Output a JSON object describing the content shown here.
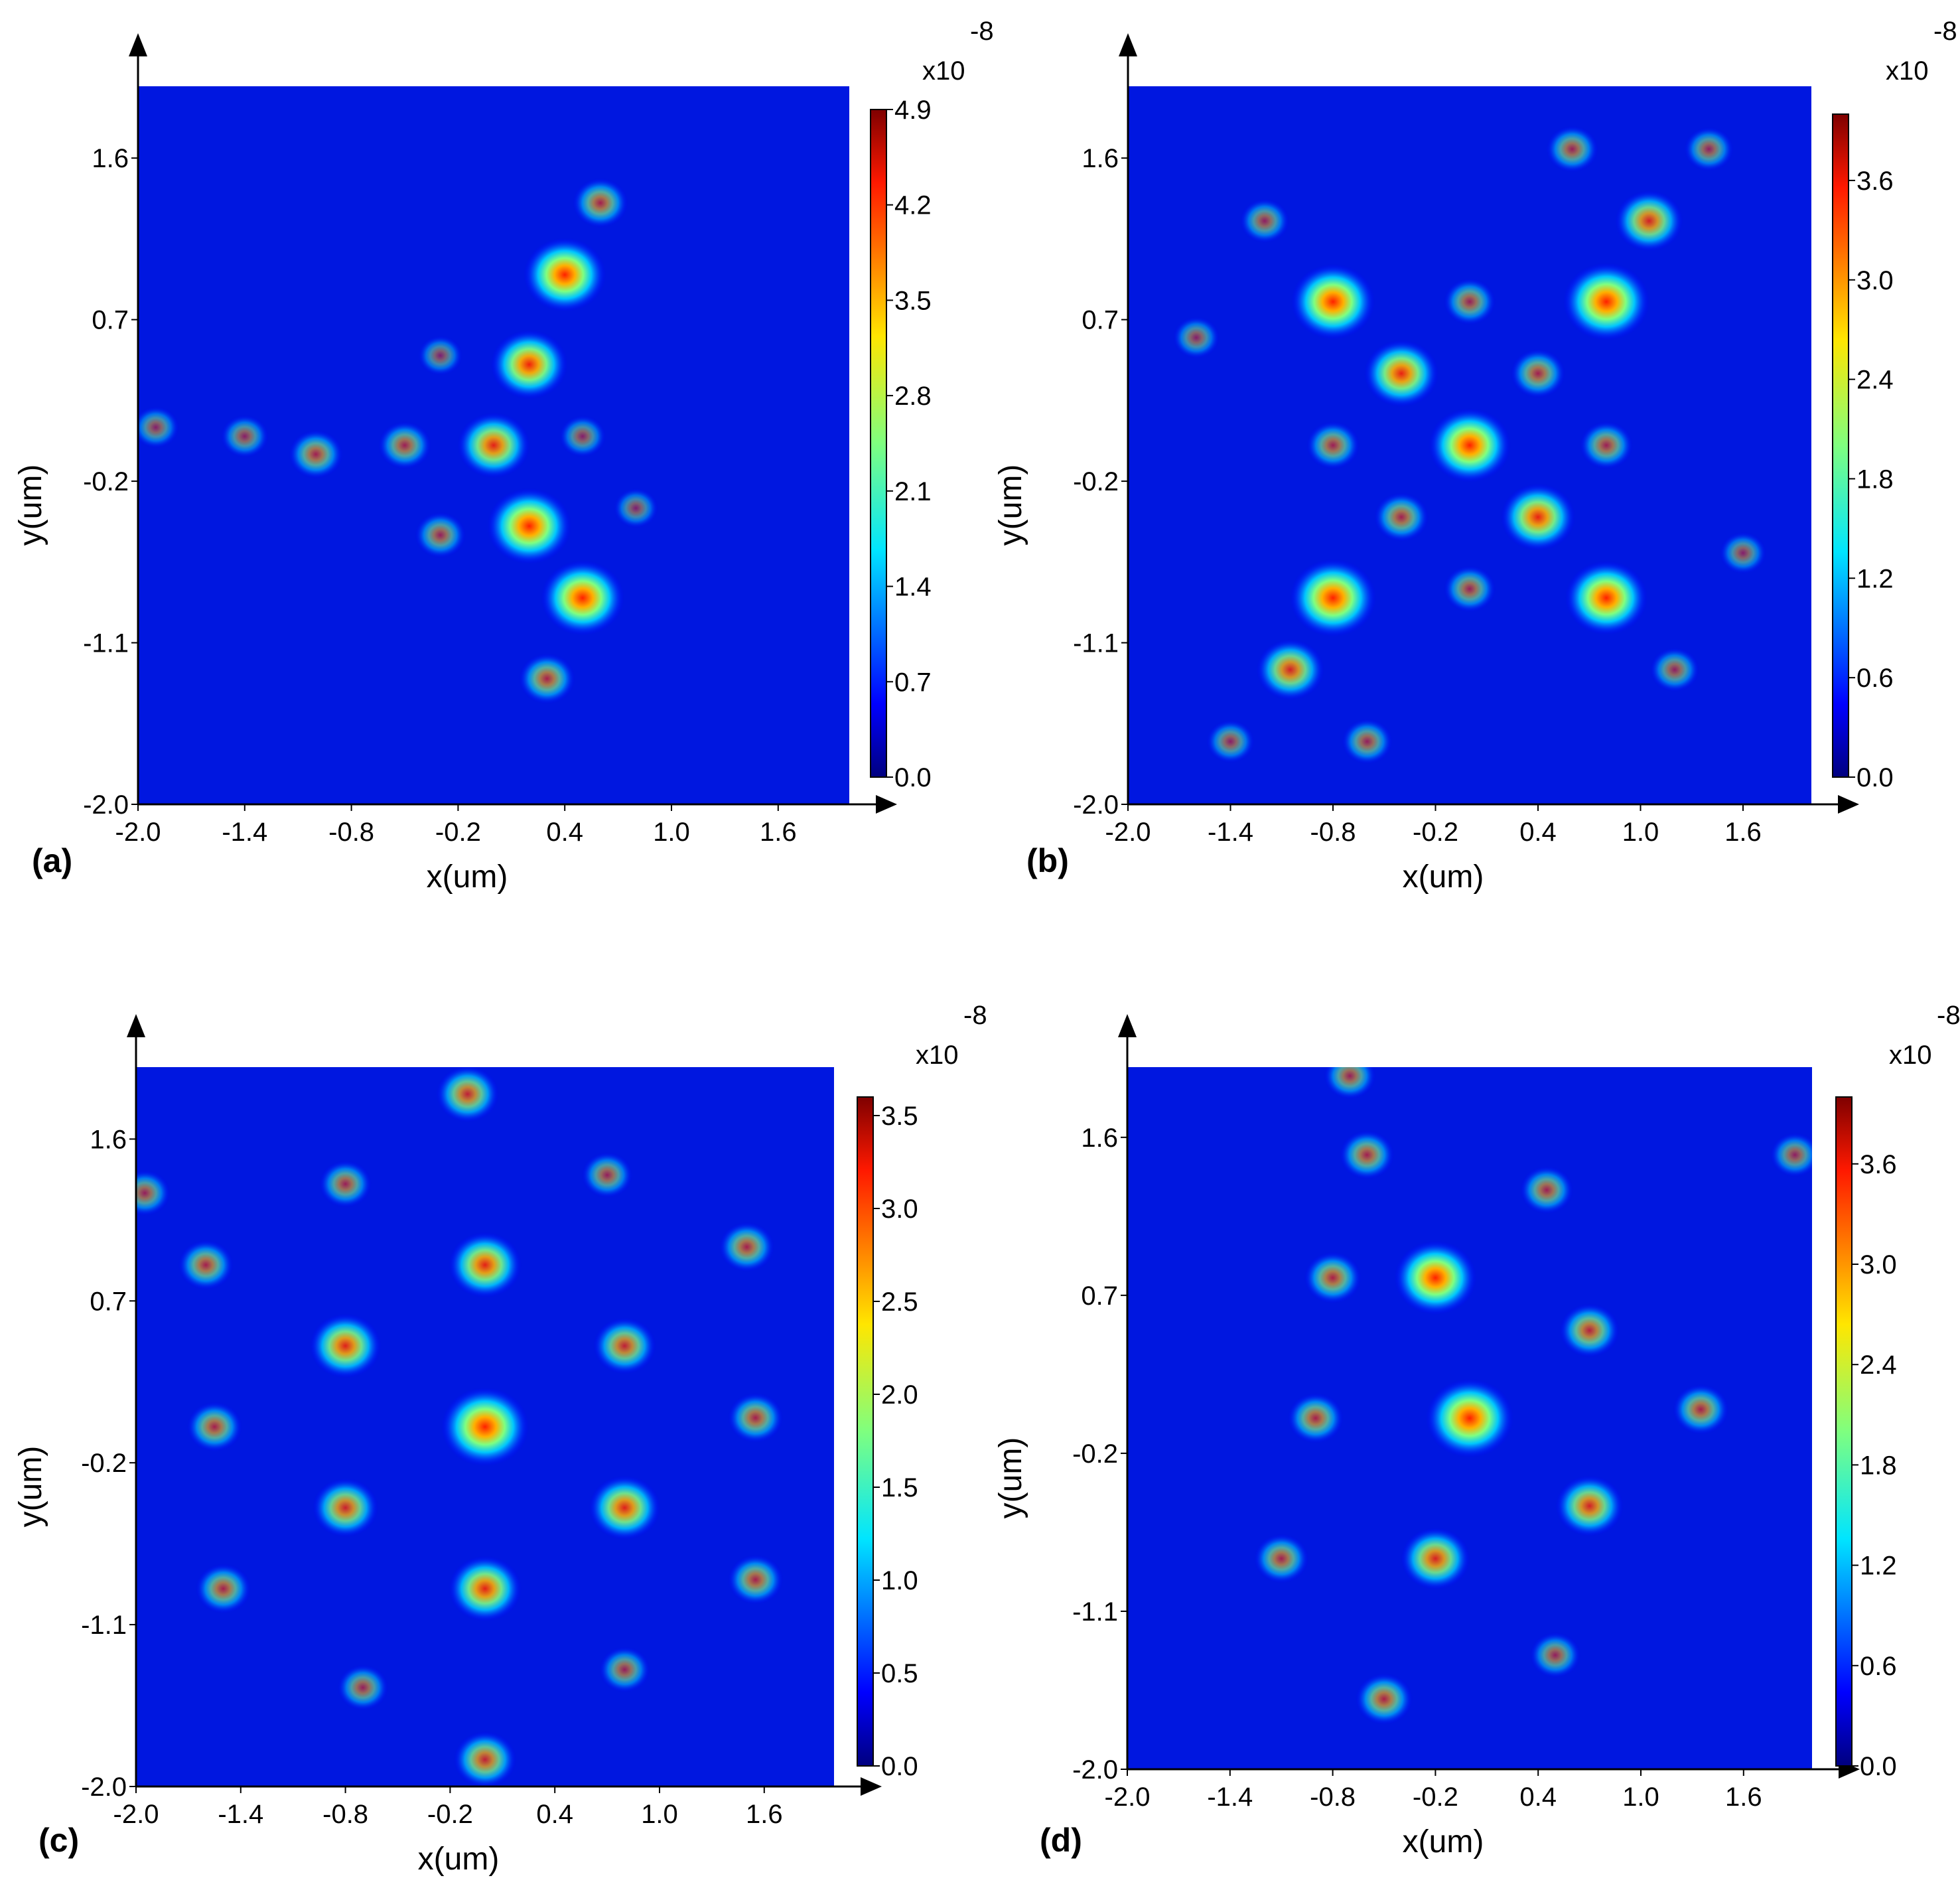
{
  "figure": {
    "panels": [
      {
        "label": "(a)",
        "cbar_max": 4.9,
        "cbar_ticks": [
          "4.9",
          "4.2",
          "3.5",
          "2.8",
          "2.1",
          "1.4",
          "0.7",
          "0.0"
        ],
        "cbar_exponent": "-8",
        "cbar_multiplier": "x10"
      },
      {
        "label": "(b)",
        "cbar_max": 4.0,
        "cbar_ticks": [
          "3.6",
          "3.0",
          "2.4",
          "1.8",
          "1.2",
          "0.6",
          "0.0"
        ],
        "cbar_exponent": "-8",
        "cbar_multiplier": "x10"
      },
      {
        "label": "(c)",
        "cbar_max": 3.6,
        "cbar_ticks": [
          "3.5",
          "3.0",
          "2.5",
          "2.0",
          "1.5",
          "1.0",
          "0.5",
          "0.0"
        ],
        "cbar_exponent": "-8",
        "cbar_multiplier": "x10"
      },
      {
        "label": "(d)",
        "cbar_max": 4.0,
        "cbar_ticks": [
          "3.6",
          "3.0",
          "2.4",
          "1.8",
          "1.2",
          "0.6",
          "0.0"
        ],
        "cbar_exponent": "-8",
        "cbar_multiplier": "x10"
      }
    ]
  },
  "chart_data": [
    {
      "type": "heatmap",
      "panel_label": "(a)",
      "xlabel": "x(um)",
      "ylabel": "y(um)",
      "xlim": [
        -2.0,
        2.0
      ],
      "ylim": [
        -2.0,
        2.0
      ],
      "xticks": [
        "-2.0",
        "-1.4",
        "-0.8",
        "-0.2",
        "0.4",
        "1.0",
        "1.6"
      ],
      "yticks": [
        "1.6",
        "0.7",
        "-0.2",
        "-1.1",
        "-2.0"
      ],
      "colorbar": {
        "min": 0.0,
        "max": 4.9,
        "scale": "x10^-8",
        "colormap": "jet"
      },
      "peaks": [
        {
          "x": 0.4,
          "y": 0.95,
          "value": 4.4
        },
        {
          "x": 0.2,
          "y": 0.45,
          "value": 3.9
        },
        {
          "x": 0.0,
          "y": 0.0,
          "value": 3.5
        },
        {
          "x": 0.2,
          "y": -0.45,
          "value": 4.6
        },
        {
          "x": 0.5,
          "y": -0.85,
          "value": 4.5
        },
        {
          "x": 0.3,
          "y": -1.3,
          "value": 2.0
        },
        {
          "x": 0.6,
          "y": 1.35,
          "value": 1.9
        },
        {
          "x": -0.5,
          "y": 0.0,
          "value": 1.7
        },
        {
          "x": -1.0,
          "y": -0.05,
          "value": 1.8
        },
        {
          "x": -1.4,
          "y": 0.05,
          "value": 1.2
        },
        {
          "x": -1.9,
          "y": 0.1,
          "value": 1.1
        },
        {
          "x": -0.3,
          "y": -0.5,
          "value": 1.5
        },
        {
          "x": 0.5,
          "y": 0.05,
          "value": 1.1
        },
        {
          "x": -0.3,
          "y": 0.5,
          "value": 0.9
        },
        {
          "x": 0.8,
          "y": -0.35,
          "value": 0.9
        }
      ]
    },
    {
      "type": "heatmap",
      "panel_label": "(b)",
      "xlabel": "x(um)",
      "ylabel": "y(um)",
      "xlim": [
        -2.0,
        2.0
      ],
      "ylim": [
        -2.0,
        2.0
      ],
      "xticks": [
        "-2.0",
        "-1.4",
        "-0.8",
        "-0.2",
        "0.4",
        "1.0",
        "1.6"
      ],
      "yticks": [
        "1.6",
        "0.7",
        "-0.2",
        "-1.1",
        "-2.0"
      ],
      "colorbar": {
        "min": 0.0,
        "max": 4.0,
        "scale": "x10^-8",
        "colormap": "jet"
      },
      "peaks": [
        {
          "x": -0.8,
          "y": 0.8,
          "value": 3.7
        },
        {
          "x": 0.8,
          "y": 0.8,
          "value": 3.9
        },
        {
          "x": -0.4,
          "y": 0.4,
          "value": 3.0
        },
        {
          "x": 0.0,
          "y": 0.0,
          "value": 3.6
        },
        {
          "x": 0.4,
          "y": -0.4,
          "value": 3.0
        },
        {
          "x": -0.8,
          "y": -0.85,
          "value": 3.9
        },
        {
          "x": 0.8,
          "y": -0.85,
          "value": 3.6
        },
        {
          "x": 1.05,
          "y": 1.25,
          "value": 2.5
        },
        {
          "x": -1.05,
          "y": -1.25,
          "value": 2.5
        },
        {
          "x": 0.4,
          "y": 0.4,
          "value": 1.5
        },
        {
          "x": -0.4,
          "y": -0.4,
          "value": 1.5
        },
        {
          "x": -0.8,
          "y": 0.0,
          "value": 1.4
        },
        {
          "x": 0.8,
          "y": 0.0,
          "value": 1.4
        },
        {
          "x": 0.0,
          "y": 0.8,
          "value": 1.3
        },
        {
          "x": 0.0,
          "y": -0.8,
          "value": 1.3
        },
        {
          "x": 0.6,
          "y": 1.65,
          "value": 1.3
        },
        {
          "x": 1.4,
          "y": 1.65,
          "value": 1.1
        },
        {
          "x": -1.2,
          "y": 1.25,
          "value": 1.1
        },
        {
          "x": 1.2,
          "y": -1.25,
          "value": 1.1
        },
        {
          "x": -1.6,
          "y": 0.6,
          "value": 0.9
        },
        {
          "x": 1.6,
          "y": -0.6,
          "value": 0.9
        },
        {
          "x": -0.6,
          "y": -1.65,
          "value": 1.2
        },
        {
          "x": -1.4,
          "y": -1.65,
          "value": 1.0
        }
      ]
    },
    {
      "type": "heatmap",
      "panel_label": "(c)",
      "xlabel": "x(um)",
      "ylabel": "y(um)",
      "xlim": [
        -2.0,
        2.0
      ],
      "ylim": [
        -2.0,
        2.0
      ],
      "xticks": [
        "-2.0",
        "-1.4",
        "-0.8",
        "-0.2",
        "0.4",
        "1.0",
        "1.6"
      ],
      "yticks": [
        "1.6",
        "0.7",
        "-0.2",
        "-1.1",
        "-2.0"
      ],
      "colorbar": {
        "min": 0.0,
        "max": 3.6,
        "scale": "x10^-8",
        "colormap": "jet"
      },
      "peaks": [
        {
          "x": 0.0,
          "y": 0.0,
          "value": 3.6
        },
        {
          "x": 0.0,
          "y": 0.9,
          "value": 2.6
        },
        {
          "x": 0.0,
          "y": -0.9,
          "value": 2.6
        },
        {
          "x": -0.8,
          "y": 0.45,
          "value": 2.5
        },
        {
          "x": 0.8,
          "y": 0.45,
          "value": 1.9
        },
        {
          "x": -0.8,
          "y": -0.45,
          "value": 2.1
        },
        {
          "x": 0.8,
          "y": -0.45,
          "value": 2.5
        },
        {
          "x": -0.1,
          "y": 1.85,
          "value": 1.9
        },
        {
          "x": 0.0,
          "y": -1.85,
          "value": 1.9
        },
        {
          "x": -0.8,
          "y": 1.35,
          "value": 1.2
        },
        {
          "x": 0.7,
          "y": 1.4,
          "value": 1.1
        },
        {
          "x": -1.6,
          "y": 0.9,
          "value": 1.4
        },
        {
          "x": 1.5,
          "y": 1.0,
          "value": 1.4
        },
        {
          "x": -1.55,
          "y": 0.0,
          "value": 1.4
        },
        {
          "x": 1.55,
          "y": 0.05,
          "value": 1.4
        },
        {
          "x": -1.5,
          "y": -0.9,
          "value": 1.4
        },
        {
          "x": 1.55,
          "y": -0.85,
          "value": 1.4
        },
        {
          "x": -0.7,
          "y": -1.45,
          "value": 1.1
        },
        {
          "x": 0.8,
          "y": -1.35,
          "value": 1.1
        },
        {
          "x": -1.95,
          "y": 1.3,
          "value": 1.1
        }
      ]
    },
    {
      "type": "heatmap",
      "panel_label": "(d)",
      "xlabel": "x(um)",
      "ylabel": "y(um)",
      "xlim": [
        -2.0,
        2.0
      ],
      "ylim": [
        -2.0,
        2.0
      ],
      "xticks": [
        "-2.0",
        "-1.4",
        "-0.8",
        "-0.2",
        "0.4",
        "1.0",
        "1.6"
      ],
      "yticks": [
        "1.6",
        "0.7",
        "-0.2",
        "-1.1",
        "-2.0"
      ],
      "colorbar": {
        "min": 0.0,
        "max": 4.0,
        "scale": "x10^-8",
        "colormap": "jet"
      },
      "peaks": [
        {
          "x": 0.0,
          "y": 0.0,
          "value": 4.0
        },
        {
          "x": -0.2,
          "y": 0.8,
          "value": 3.6
        },
        {
          "x": 0.7,
          "y": 0.5,
          "value": 1.9
        },
        {
          "x": -0.8,
          "y": 0.8,
          "value": 1.7
        },
        {
          "x": -0.9,
          "y": 0.0,
          "value": 1.6
        },
        {
          "x": 0.7,
          "y": -0.5,
          "value": 2.5
        },
        {
          "x": -0.2,
          "y": -0.8,
          "value": 2.6
        },
        {
          "x": -1.1,
          "y": -0.8,
          "value": 1.5
        },
        {
          "x": 1.35,
          "y": 0.05,
          "value": 1.6
        },
        {
          "x": -0.5,
          "y": -1.6,
          "value": 1.7
        },
        {
          "x": 0.45,
          "y": 1.3,
          "value": 1.4
        },
        {
          "x": -0.6,
          "y": 1.5,
          "value": 1.5
        },
        {
          "x": 0.5,
          "y": -1.35,
          "value": 1.2
        },
        {
          "x": -0.7,
          "y": 1.95,
          "value": 1.3
        },
        {
          "x": 1.9,
          "y": 1.5,
          "value": 1.1
        }
      ]
    }
  ]
}
